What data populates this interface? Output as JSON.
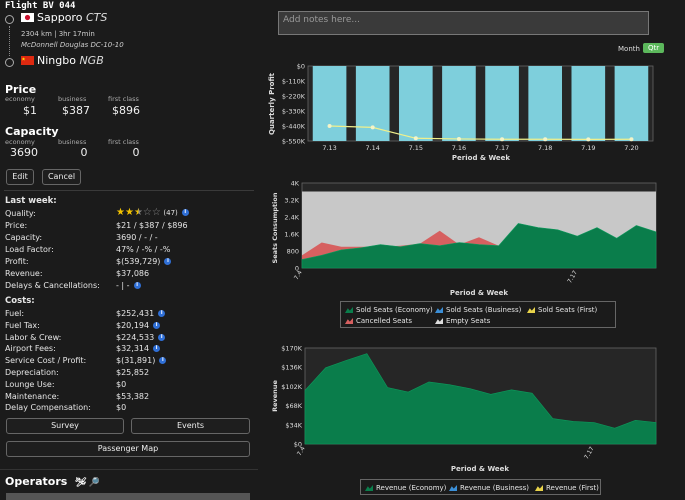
{
  "flight": {
    "title": "Flight BV 044",
    "origin": {
      "city": "Sapporo",
      "code": "CTS"
    },
    "route_info": "2304 km | 3hr 17min",
    "aircraft": "McDonnell Douglas DC-10-10",
    "destination": {
      "city": "Ningbo",
      "code": "NGB"
    }
  },
  "price": {
    "heading": "Price",
    "classes": [
      {
        "label": "economy",
        "value": "$1"
      },
      {
        "label": "business",
        "value": "$387"
      },
      {
        "label": "first class",
        "value": "$896"
      }
    ]
  },
  "capacity": {
    "heading": "Capacity",
    "classes": [
      {
        "label": "economy",
        "value": "3690"
      },
      {
        "label": "business",
        "value": "0"
      },
      {
        "label": "first class",
        "value": "0"
      }
    ]
  },
  "buttons": {
    "edit": "Edit",
    "cancel": "Cancel",
    "survey": "Survey",
    "events": "Events",
    "passenger_map": "Passenger Map"
  },
  "last_week": {
    "heading": "Last week:",
    "quality_label": "Quality:",
    "quality_stars": 2.5,
    "quality_count": "(47)",
    "rows": [
      {
        "label": "Price:",
        "value": "$21 / $387 / $896"
      },
      {
        "label": "Capacity:",
        "value": "3690 / - / -"
      },
      {
        "label": "Load Factor:",
        "value": "47% / -% / -%"
      },
      {
        "label": "Profit:",
        "value": "$(539,729)"
      },
      {
        "label": "Revenue:",
        "value": "$37,086"
      },
      {
        "label": "Delays & Cancellations:",
        "value": "- | -"
      }
    ]
  },
  "costs": {
    "heading": "Costs:",
    "rows": [
      {
        "label": "Fuel:",
        "value": "$252,431"
      },
      {
        "label": "Fuel Tax:",
        "value": "$20,194"
      },
      {
        "label": "Labor & Crew:",
        "value": "$224,533"
      },
      {
        "label": "Airport Fees:",
        "value": "$32,314"
      },
      {
        "label": "Service Cost / Profit:",
        "value": "$(31,891)"
      },
      {
        "label": "Depreciation:",
        "value": "$25,852"
      },
      {
        "label": "Lounge Use:",
        "value": "$0"
      },
      {
        "label": "Maintenance:",
        "value": "$53,382"
      },
      {
        "label": "Delay Compensation:",
        "value": "$0"
      }
    ]
  },
  "operators": {
    "heading": "Operators"
  },
  "notes": {
    "placeholder": "Add notes here..."
  },
  "period_toggle": {
    "month": "Month",
    "qtr": "Qtr",
    "active": "Qtr"
  },
  "colors": {
    "economy": "#0a7d4b",
    "cancelled": "#d66060",
    "empty": "#c8c8c8",
    "bar": "#7ecfdc",
    "line": "#f0f08c",
    "accent_button": "#5cb85c"
  },
  "chart_data": [
    {
      "type": "bar",
      "ylabel": "Quarterly Profit",
      "xlabel": "Period & Week",
      "categories": [
        "7.13",
        "7.14",
        "7.15",
        "7.16",
        "7.17",
        "7.18",
        "7.19",
        "7.20"
      ],
      "yticks": [
        "$0",
        "$-110K",
        "$-220K",
        "$-330K",
        "$-440K",
        "$-550K"
      ],
      "ylim": [
        -550000,
        0
      ],
      "bar_values": [
        -550000,
        -550000,
        -550000,
        -550000,
        -550000,
        -550000,
        -550000,
        -550000
      ],
      "line_values": [
        -440000,
        -450000,
        -530000,
        -535000,
        -537000,
        -537000,
        -538000,
        -537000
      ]
    },
    {
      "type": "area",
      "ylabel": "Seats Consumption",
      "xlabel": "Period & Week",
      "xticks": [
        "7.4",
        "7.17"
      ],
      "yticks": [
        "4K",
        "3.2K",
        "2.4K",
        "1.6K",
        "800",
        "0"
      ],
      "ylim": [
        0,
        4000
      ],
      "series": [
        {
          "name": "Sold Seats (Economy)",
          "values": [
            400,
            600,
            850,
            950,
            1100,
            1000,
            1150,
            1050,
            1200,
            1100,
            1050,
            2100,
            1900,
            1800,
            1500,
            1900,
            1400,
            2000,
            1700
          ]
        },
        {
          "name": "Cancelled Seats",
          "values": [
            600,
            1200,
            1000,
            1000,
            1000,
            1050,
            1150,
            1750,
            1100,
            1450,
            1050,
            0,
            0,
            0,
            0,
            0,
            0,
            0,
            0
          ]
        },
        {
          "name": "Empty Seats",
          "values": [
            3600,
            3600,
            3600,
            3600,
            3600,
            3600,
            3600,
            3600,
            3600,
            3600,
            3600,
            3600,
            3600,
            3600,
            3600,
            3600,
            3600,
            3600,
            3600
          ]
        }
      ],
      "legend": [
        "Sold Seats (Economy)",
        "Sold Seats (Business)",
        "Sold Seats (First)",
        "Cancelled Seats",
        "Empty Seats"
      ]
    },
    {
      "type": "area",
      "ylabel": "Revenue",
      "xlabel": "Period & Week",
      "xticks": [
        "7.4",
        "7.17"
      ],
      "yticks": [
        "$170K",
        "$136K",
        "$102K",
        "$68K",
        "$34K",
        "$0"
      ],
      "ylim": [
        0,
        170000
      ],
      "series": [
        {
          "name": "Revenue (Economy)",
          "values": [
            95000,
            135000,
            148000,
            160000,
            100000,
            92000,
            110000,
            105000,
            98000,
            88000,
            96000,
            90000,
            45000,
            40000,
            38000,
            28000,
            42000,
            38000
          ]
        }
      ],
      "legend": [
        "Revenue (Economy)",
        "Revenue (Business)",
        "Revenue (First)"
      ]
    }
  ]
}
